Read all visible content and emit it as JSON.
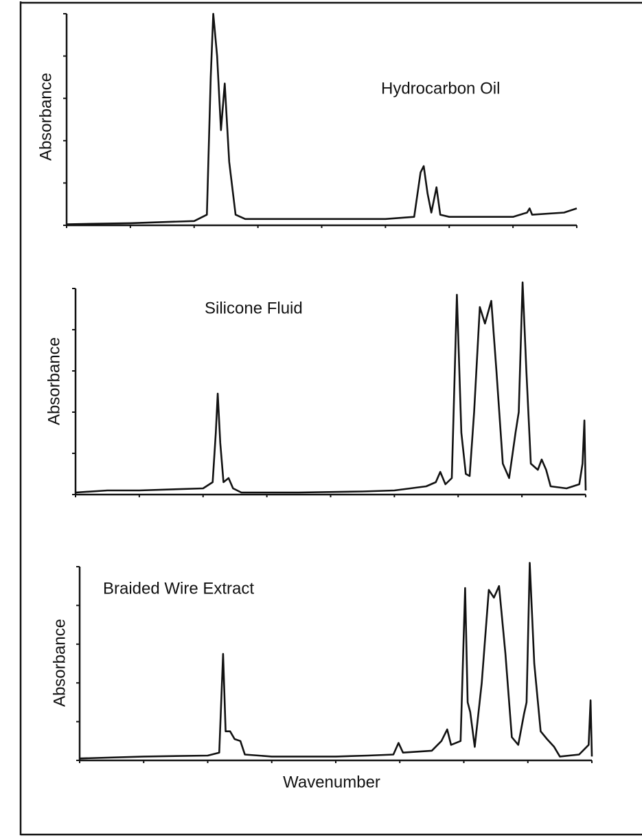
{
  "chart_data": [
    {
      "type": "line",
      "annotation": "Hydrocarbon Oil",
      "ylabel": "Absorbance",
      "xlim": [
        0,
        8
      ],
      "ylim": [
        0,
        100
      ],
      "xticks": [
        0,
        1,
        2,
        3,
        4,
        5,
        6,
        7,
        8
      ],
      "yticks": [
        0,
        20,
        40,
        60,
        80,
        100
      ],
      "color": "#111111",
      "x": [
        0,
        1,
        2,
        2.2,
        2.26,
        2.3,
        2.36,
        2.42,
        2.48,
        2.55,
        2.65,
        2.8,
        3.5,
        4,
        5,
        5.45,
        5.55,
        5.6,
        5.66,
        5.72,
        5.8,
        5.86,
        6,
        7,
        7.22,
        7.26,
        7.3,
        7.8,
        8
      ],
      "values": [
        0.5,
        1,
        2,
        5,
        70,
        100,
        80,
        45,
        67,
        30,
        5,
        3,
        3,
        3,
        3,
        4,
        25,
        28,
        15,
        6,
        18,
        5,
        4,
        4,
        6,
        8,
        5,
        6,
        8
      ]
    },
    {
      "type": "line",
      "annotation": "Silicone Fluid",
      "ylabel": "Absorbance",
      "xlim": [
        0,
        8
      ],
      "ylim": [
        0,
        100
      ],
      "xticks": [
        0,
        1,
        2,
        3,
        4,
        5,
        6,
        7,
        8
      ],
      "yticks": [
        0,
        20,
        40,
        60,
        80,
        100
      ],
      "color": "#111111",
      "x": [
        0,
        0.5,
        1,
        2,
        2.15,
        2.2,
        2.23,
        2.27,
        2.32,
        2.4,
        2.47,
        2.6,
        3.5,
        4.5,
        5,
        5.5,
        5.65,
        5.72,
        5.8,
        5.9,
        5.98,
        6.05,
        6.12,
        6.18,
        6.25,
        6.34,
        6.42,
        6.52,
        6.6,
        6.7,
        6.8,
        6.9,
        6.95,
        7.01,
        7.07,
        7.14,
        7.25,
        7.31,
        7.38,
        7.45,
        7.7,
        7.9,
        7.95,
        7.98,
        8
      ],
      "values": [
        1,
        2,
        2,
        3,
        6,
        30,
        49,
        25,
        6,
        8,
        3,
        1,
        1,
        1.5,
        2,
        4,
        6,
        11,
        5,
        8,
        97,
        30,
        10,
        9,
        40,
        91,
        83,
        94,
        60,
        15,
        8,
        30,
        40,
        103,
        60,
        15,
        12,
        17,
        12,
        4,
        3,
        5,
        15,
        36,
        2
      ]
    },
    {
      "type": "line",
      "annotation": "Braided Wire Extract",
      "ylabel": "Absorbance",
      "xlabel": "Wavenumber",
      "xlim": [
        0,
        8
      ],
      "ylim": [
        0,
        100
      ],
      "xticks": [
        0,
        1,
        2,
        3,
        4,
        5,
        6,
        7,
        8
      ],
      "yticks": [
        0,
        20,
        40,
        60,
        80,
        100
      ],
      "color": "#111111",
      "x": [
        0,
        1,
        2,
        2.18,
        2.24,
        2.28,
        2.35,
        2.42,
        2.51,
        2.58,
        3,
        4,
        4.5,
        4.9,
        4.98,
        5.05,
        5.5,
        5.65,
        5.74,
        5.8,
        5.95,
        6.02,
        6.06,
        6.1,
        6.17,
        6.28,
        6.39,
        6.47,
        6.55,
        6.65,
        6.75,
        6.85,
        6.94,
        6.98,
        7.03,
        7.1,
        7.2,
        7.3,
        7.41,
        7.5,
        7.8,
        7.95,
        7.98,
        8
      ],
      "values": [
        1,
        2,
        2.5,
        4,
        55,
        15,
        15,
        11,
        10,
        3,
        2,
        2,
        2.5,
        3,
        9,
        4,
        5,
        10,
        16,
        8,
        10,
        89,
        30,
        25,
        7,
        40,
        88,
        84,
        90,
        55,
        12,
        8,
        24,
        30,
        102,
        50,
        15,
        11,
        7,
        2,
        3,
        8,
        31,
        2
      ]
    }
  ]
}
